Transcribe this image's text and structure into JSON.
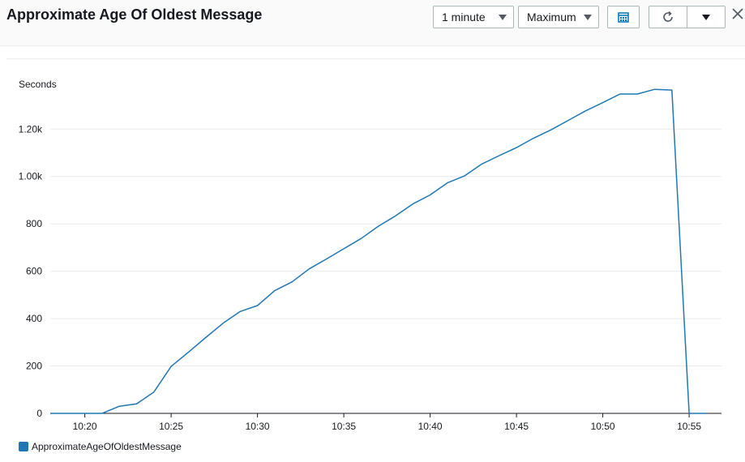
{
  "header": {
    "title": "Approximate Age Of Oldest Message",
    "period_label": "1 minute",
    "statistic_label": "Maximum",
    "calendar_icon": "calendar-icon",
    "refresh_icon": "refresh-icon",
    "menu_icon": "caret-down-icon",
    "close_icon": "close-icon"
  },
  "colors": {
    "series": "#1f77b4",
    "grid": "#e9ebed",
    "axis": "#16191f"
  },
  "chart_data": {
    "type": "line",
    "ylabel": "Seconds",
    "ylim": [
      0,
      1420
    ],
    "xlim_minutes": [
      0,
      38.4
    ],
    "y_ticks": [
      {
        "value": 0,
        "label": "0"
      },
      {
        "value": 200,
        "label": "200"
      },
      {
        "value": 400,
        "label": "400"
      },
      {
        "value": 600,
        "label": "600"
      },
      {
        "value": 800,
        "label": "800"
      },
      {
        "value": 1000,
        "label": "1.00k"
      },
      {
        "value": 1200,
        "label": "1.20k"
      }
    ],
    "x_ticks": [
      {
        "label": "10:20"
      },
      {
        "label": "10:25"
      },
      {
        "label": "10:30"
      },
      {
        "label": "10:35"
      },
      {
        "label": "10:40"
      },
      {
        "label": "10:45"
      },
      {
        "label": "10:50"
      },
      {
        "label": "10:55"
      }
    ],
    "grid": true,
    "series": [
      {
        "name": "ApproximateAgeOfOldestMessage",
        "x": [
          "10:18",
          "10:19",
          "10:20",
          "10:21",
          "10:22",
          "10:23",
          "10:24",
          "10:25",
          "10:26",
          "10:27",
          "10:28",
          "10:29",
          "10:30",
          "10:31",
          "10:32",
          "10:33",
          "10:34",
          "10:35",
          "10:36",
          "10:37",
          "10:38",
          "10:39",
          "10:40",
          "10:41",
          "10:42",
          "10:43",
          "10:44",
          "10:45",
          "10:46",
          "10:47",
          "10:48",
          "10:49",
          "10:50",
          "10:51",
          "10:52",
          "10:53",
          "10:54",
          "10:55",
          "10:56"
        ],
        "values": [
          0,
          0,
          0,
          0,
          30,
          40,
          90,
          198,
          258,
          320,
          380,
          430,
          455,
          518,
          555,
          610,
          652,
          695,
          738,
          790,
          834,
          884,
          922,
          973,
          1003,
          1053,
          1088,
          1122,
          1162,
          1197,
          1237,
          1277,
          1312,
          1348,
          1348,
          1368,
          1365,
          0,
          0
        ]
      }
    ]
  }
}
